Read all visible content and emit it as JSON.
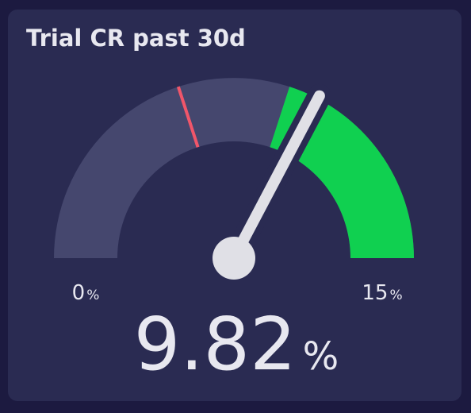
{
  "chart_data": {
    "type": "gauge",
    "title": "Trial CR past 30d",
    "min": 0,
    "max": 15,
    "value": 9.82,
    "unit": "%",
    "target": 6,
    "target_color": "#f0566a",
    "track_color": "#45476e",
    "needle_color": "#e0e0e6",
    "bands": [
      {
        "from": 9,
        "to": 15,
        "color": "#10d050"
      }
    ]
  }
}
